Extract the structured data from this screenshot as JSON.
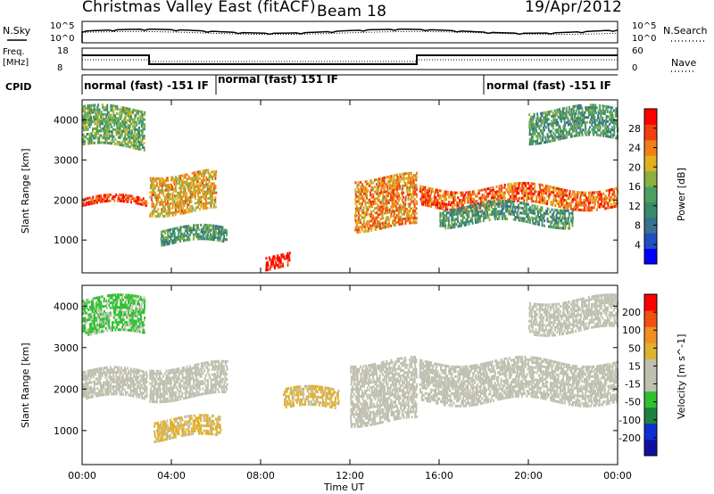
{
  "header": {
    "station": "Christmas Valley East (fitACF)",
    "beam": "Beam 18",
    "date": "19/Apr/2012"
  },
  "top_panels": {
    "nsky_label": "N.Sky",
    "nsearch_label": "N.Search",
    "noise_ticks_left": [
      "10^5",
      "10^0"
    ],
    "noise_ticks_right": [
      "10^5",
      "10^0"
    ],
    "freq_label_top": "Freq.",
    "freq_label_bottom": "[MHz]",
    "freq_ticks": [
      "18",
      "8"
    ],
    "nave_label": "Nave",
    "nave_ticks": [
      "60",
      "0"
    ],
    "cpid_label": "CPID",
    "cpid_segments": [
      {
        "text": "normal (fast) -151 IF",
        "start_hour": 0,
        "end_hour": 6
      },
      {
        "text": "normal (fast) 151 IF",
        "start_hour": 6,
        "end_hour": 18
      },
      {
        "text": "normal (fast) -151 IF",
        "start_hour": 18,
        "end_hour": 24
      }
    ]
  },
  "colors": {
    "power_scale": [
      "#0000ff",
      "#1f4fc0",
      "#3a7090",
      "#3a8a6a",
      "#4ea060",
      "#8ab040",
      "#e0b020",
      "#f08018",
      "#f04010",
      "#ff0000"
    ],
    "velocity_scale": [
      "#1010a0",
      "#1030d0",
      "#208040",
      "#30c030",
      "#c0c0b0",
      "#c0c0b0",
      "#e0b030",
      "#f09020",
      "#f05010",
      "#ff0000"
    ]
  },
  "chart_data": [
    {
      "type": "heatmap",
      "title": "Power",
      "xlabel": "Time UT",
      "ylabel": "Slant Range [km]",
      "xlim_hours": [
        0,
        24
      ],
      "ylim_km": [
        180,
        4500
      ],
      "x_tick_labels": [
        "00:00",
        "04:00",
        "08:00",
        "12:00",
        "16:00",
        "20:00",
        "00:00"
      ],
      "y_ticks": [
        1000,
        2000,
        3000,
        4000
      ],
      "colorbar_label": "Power [dB]",
      "colorbar_ticks": [
        "28",
        "24",
        "20",
        "16",
        "12",
        "8",
        "4"
      ],
      "colorbar_range": [
        0,
        30
      ],
      "bands": [
        {
          "t0": 0.0,
          "t1": 2.9,
          "r0": 1850,
          "r1": 2050,
          "level": 26
        },
        {
          "t0": 3.0,
          "t1": 6.0,
          "r0": 1700,
          "r1": 2700,
          "level": 20
        },
        {
          "t0": 3.5,
          "t1": 6.5,
          "r0": 900,
          "r1": 1300,
          "level": 12
        },
        {
          "t0": 8.2,
          "t1": 9.3,
          "r0": 300,
          "r1": 650,
          "level": 28
        },
        {
          "t0": 12.2,
          "t1": 15.0,
          "r0": 1300,
          "r1": 2600,
          "level": 22
        },
        {
          "t0": 15.1,
          "t1": 24.0,
          "r0": 1850,
          "r1": 2350,
          "level": 24
        },
        {
          "t0": 16.0,
          "t1": 22.0,
          "r0": 1400,
          "r1": 1900,
          "level": 12
        },
        {
          "t0": 0.0,
          "t1": 2.8,
          "r0": 3300,
          "r1": 4300,
          "level": 14
        },
        {
          "t0": 20.0,
          "t1": 24.0,
          "r0": 3500,
          "r1": 4300,
          "level": 12
        }
      ]
    },
    {
      "type": "heatmap",
      "title": "Velocity",
      "xlabel": "Time UT",
      "ylabel": "Slant Range [km]",
      "xlim_hours": [
        0,
        24
      ],
      "ylim_km": [
        180,
        4500
      ],
      "x_tick_labels": [
        "00:00",
        "04:00",
        "08:00",
        "12:00",
        "16:00",
        "20:00",
        "00:00"
      ],
      "y_ticks": [
        1000,
        2000,
        3000,
        4000
      ],
      "colorbar_label": "Velocity [m s^-1]",
      "colorbar_ticks": [
        "200",
        "100",
        "50",
        "15",
        "-15",
        "-50",
        "-100",
        "-200"
      ],
      "colorbar_range": [
        -250,
        250
      ],
      "bands": [
        {
          "t0": 0.0,
          "t1": 2.9,
          "r0": 1750,
          "r1": 2450,
          "level": 0
        },
        {
          "t0": 3.0,
          "t1": 6.5,
          "r0": 1800,
          "r1": 2600,
          "level": 0
        },
        {
          "t0": 3.2,
          "t1": 6.2,
          "r0": 800,
          "r1": 1300,
          "level": 60
        },
        {
          "t0": 9.0,
          "t1": 11.5,
          "r0": 1500,
          "r1": 2000,
          "level": 60
        },
        {
          "t0": 12.0,
          "t1": 15.0,
          "r0": 1200,
          "r1": 2700,
          "level": 0
        },
        {
          "t0": 15.1,
          "t1": 24.0,
          "r0": 1700,
          "r1": 2700,
          "level": 0
        },
        {
          "t0": 0.0,
          "t1": 2.8,
          "r0": 3300,
          "r1": 4200,
          "level": -60
        },
        {
          "t0": 20.0,
          "t1": 24.0,
          "r0": 3400,
          "r1": 4200,
          "level": 0
        }
      ]
    }
  ]
}
